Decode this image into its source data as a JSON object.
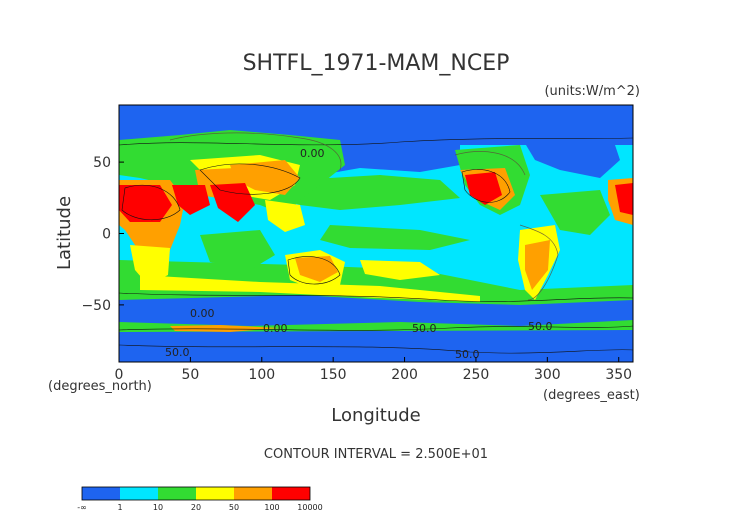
{
  "chart_data": {
    "type": "heatmap",
    "title": "SHTFL_1971-MAM_NCEP",
    "units": "(units:W/m^2)",
    "xlabel": "Longitude",
    "ylabel": "Latitude",
    "x_unit_label": "(degrees_east)",
    "y_unit_label": "(degrees_north)",
    "xlim": [
      0,
      360
    ],
    "ylim": [
      -90,
      90
    ],
    "x_ticks": [
      0,
      50,
      100,
      150,
      200,
      250,
      300,
      350
    ],
    "y_ticks": [
      -50,
      0,
      50
    ],
    "contour_interval_text": "CONTOUR INTERVAL = 2.500E+01",
    "contour_labels": [
      "0.00",
      "0.00",
      "0.00",
      "50.0",
      "50.0",
      "50.0",
      "50.0"
    ],
    "colorbar": {
      "boundaries": [
        "-∞",
        "1",
        "10",
        "20",
        "50",
        "100",
        "10000"
      ],
      "colors": [
        "#1e64f0",
        "#00e6ff",
        "#32dc32",
        "#ffff00",
        "#ffa000",
        "#ff0000"
      ]
    }
  }
}
